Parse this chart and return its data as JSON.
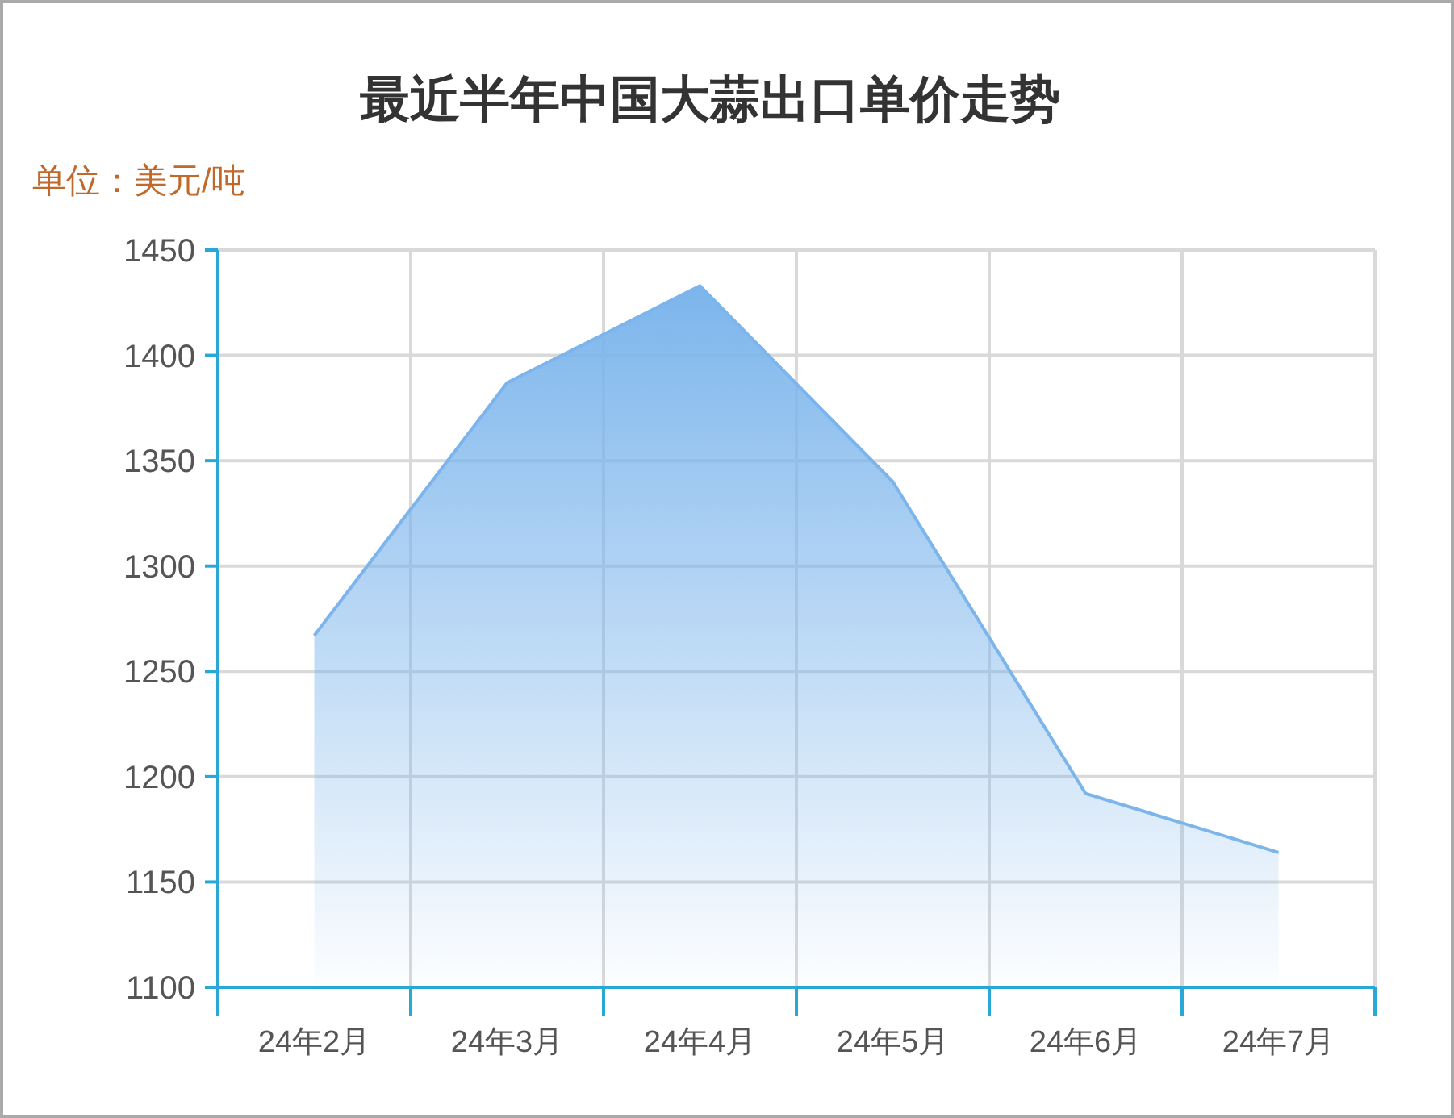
{
  "chart_data": {
    "type": "area",
    "title": "最近半年中国大蒜出口单价走势",
    "ylabel": "单位：美元/吨",
    "categories": [
      "24年2月",
      "24年3月",
      "24年4月",
      "24年5月",
      "24年6月",
      "24年7月"
    ],
    "series": [
      {
        "color": "#7cb5ec",
        "values": [
          1267,
          1387,
          1433,
          1340,
          1192,
          1164
        ]
      }
    ],
    "ylim": [
      1100,
      1450
    ],
    "yticks": [
      1100,
      1150,
      1200,
      1250,
      1300,
      1350,
      1400,
      1450
    ],
    "grid": true
  }
}
